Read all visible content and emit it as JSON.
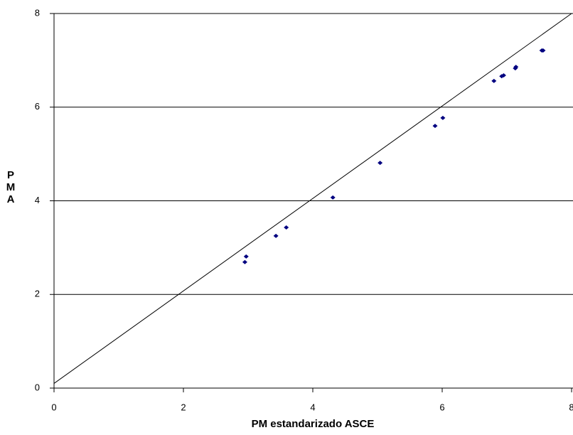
{
  "chart_data": {
    "type": "scatter",
    "xlabel": "PM estandarizado ASCE",
    "ylabel": "PMA",
    "xlim": [
      0,
      8
    ],
    "ylim": [
      0,
      8
    ],
    "xticks": [
      0,
      2,
      4,
      6,
      8
    ],
    "yticks": [
      0,
      2,
      4,
      6,
      8
    ],
    "grid": true,
    "series": [
      {
        "color": "#000080",
        "x": [
          2.95,
          2.97,
          3.43,
          3.59,
          4.31,
          5.04,
          5.89,
          6.01,
          6.8,
          6.92,
          6.95,
          7.13,
          7.14,
          7.54,
          7.56
        ],
        "values": [
          2.69,
          2.81,
          3.25,
          3.43,
          4.07,
          4.81,
          5.6,
          5.77,
          6.56,
          6.66,
          6.68,
          6.83,
          6.86,
          7.21,
          7.21
        ]
      },
      {
        "type": "line",
        "color": "#000000",
        "x": [
          0,
          8
        ],
        "values": [
          0.1,
          8
        ]
      }
    ]
  }
}
